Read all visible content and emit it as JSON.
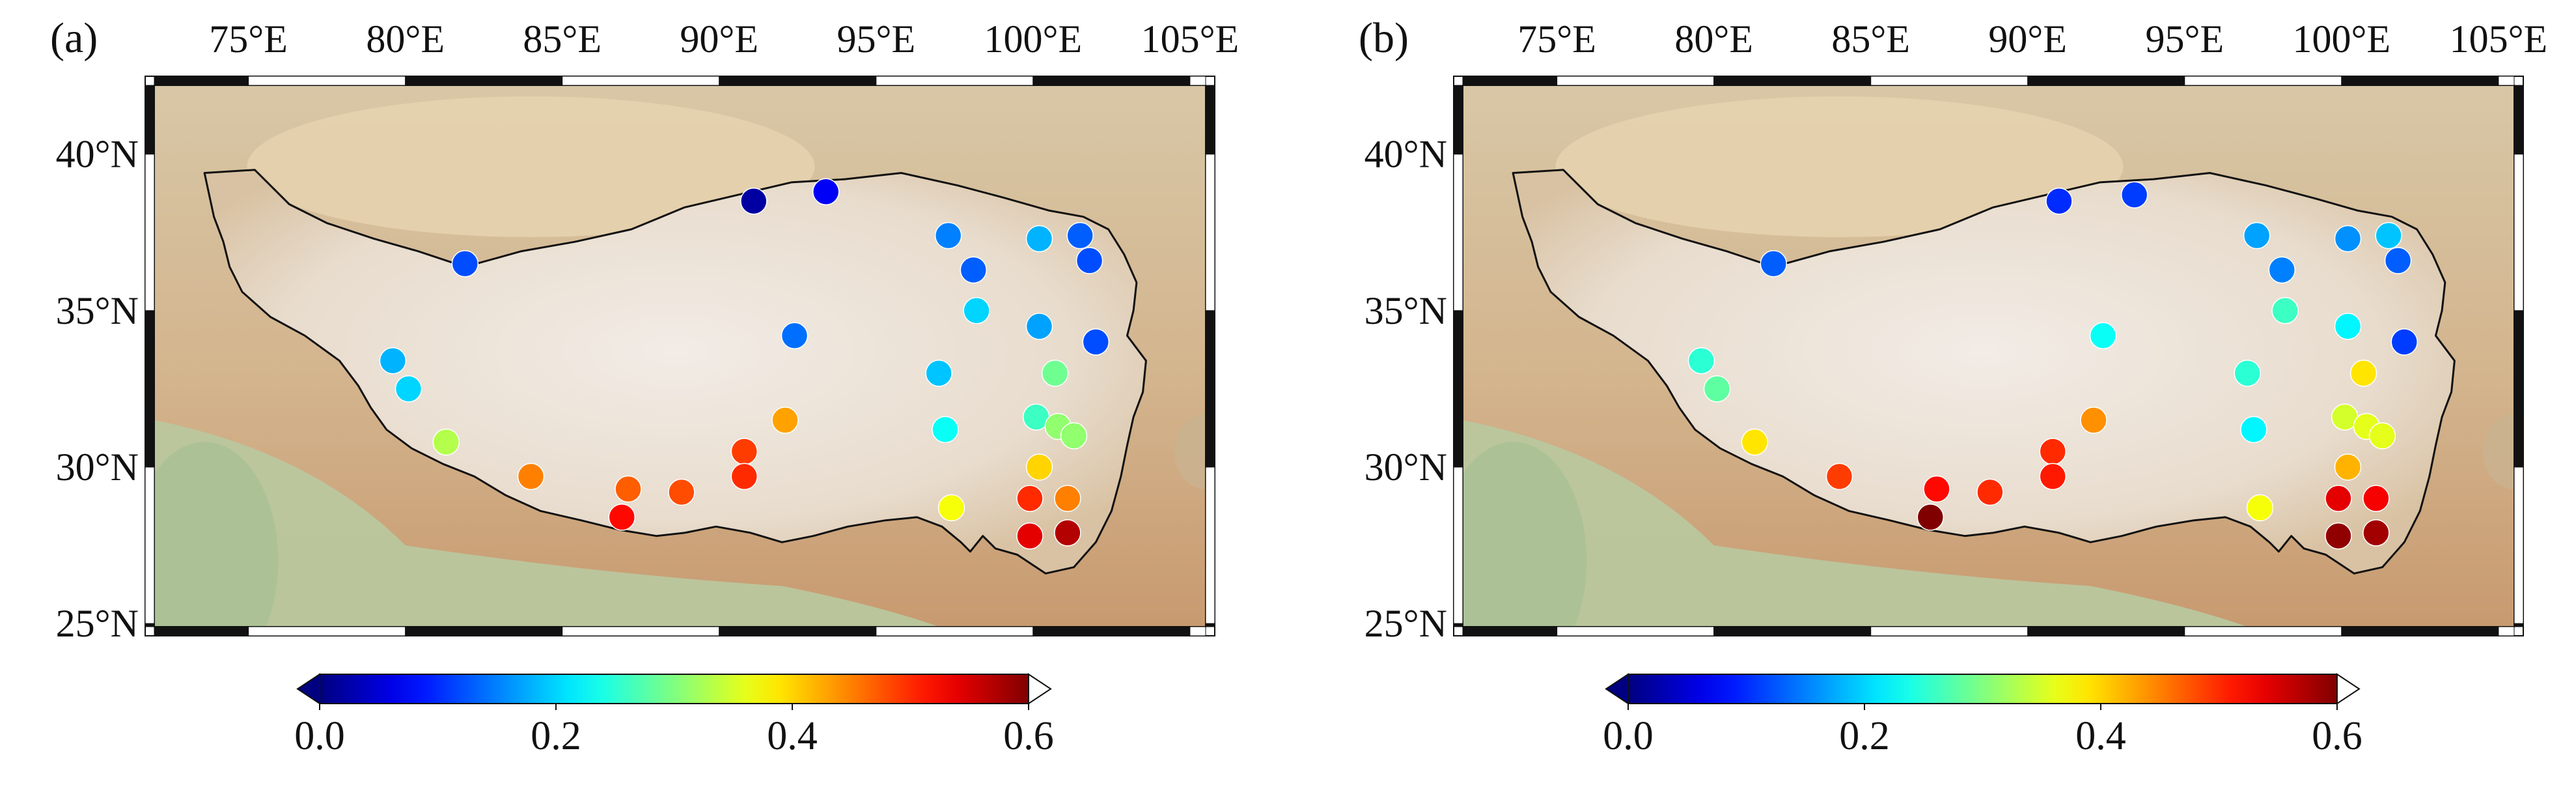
{
  "panels": [
    {
      "label": "(a)",
      "x_ticks": [
        "75°E",
        "80°E",
        "85°E",
        "90°E",
        "95°E",
        "100°E",
        "105°E"
      ],
      "y_ticks": [
        "40°N",
        "35°N",
        "30°N",
        "25°N"
      ],
      "colorbar": {
        "min": 0.0,
        "max": 0.6,
        "ticks": [
          "0.0",
          "0.2",
          "0.4",
          "0.6"
        ],
        "colormap": "jet",
        "extend": "both"
      },
      "stations": [
        {
          "lon": 81.9,
          "lat": 36.5,
          "value": 0.12
        },
        {
          "lon": 91.1,
          "lat": 38.5,
          "value": 0.02
        },
        {
          "lon": 93.4,
          "lat": 38.8,
          "value": 0.07
        },
        {
          "lon": 97.3,
          "lat": 37.4,
          "value": 0.15
        },
        {
          "lon": 100.2,
          "lat": 37.3,
          "value": 0.18
        },
        {
          "lon": 101.5,
          "lat": 37.4,
          "value": 0.13
        },
        {
          "lon": 98.1,
          "lat": 36.3,
          "value": 0.13
        },
        {
          "lon": 101.8,
          "lat": 36.6,
          "value": 0.12
        },
        {
          "lon": 98.2,
          "lat": 35.0,
          "value": 0.2
        },
        {
          "lon": 92.4,
          "lat": 34.2,
          "value": 0.14
        },
        {
          "lon": 100.2,
          "lat": 34.5,
          "value": 0.17
        },
        {
          "lon": 102.0,
          "lat": 34.0,
          "value": 0.12
        },
        {
          "lon": 79.6,
          "lat": 33.4,
          "value": 0.18
        },
        {
          "lon": 80.1,
          "lat": 32.5,
          "value": 0.2
        },
        {
          "lon": 97.0,
          "lat": 33.0,
          "value": 0.19
        },
        {
          "lon": 100.7,
          "lat": 33.0,
          "value": 0.29
        },
        {
          "lon": 92.1,
          "lat": 31.5,
          "value": 0.43
        },
        {
          "lon": 100.1,
          "lat": 31.6,
          "value": 0.26
        },
        {
          "lon": 100.8,
          "lat": 31.3,
          "value": 0.31
        },
        {
          "lon": 101.3,
          "lat": 31.0,
          "value": 0.31
        },
        {
          "lon": 97.2,
          "lat": 31.2,
          "value": 0.23
        },
        {
          "lon": 81.3,
          "lat": 30.8,
          "value": 0.33
        },
        {
          "lon": 90.8,
          "lat": 30.5,
          "value": 0.49
        },
        {
          "lon": 100.2,
          "lat": 30.0,
          "value": 0.4
        },
        {
          "lon": 84.0,
          "lat": 29.7,
          "value": 0.45
        },
        {
          "lon": 90.8,
          "lat": 29.7,
          "value": 0.5
        },
        {
          "lon": 87.1,
          "lat": 29.3,
          "value": 0.47
        },
        {
          "lon": 88.8,
          "lat": 29.2,
          "value": 0.48
        },
        {
          "lon": 99.9,
          "lat": 29.0,
          "value": 0.5
        },
        {
          "lon": 101.1,
          "lat": 29.0,
          "value": 0.45
        },
        {
          "lon": 97.4,
          "lat": 28.7,
          "value": 0.37
        },
        {
          "lon": 86.9,
          "lat": 28.4,
          "value": 0.52
        },
        {
          "lon": 99.9,
          "lat": 27.8,
          "value": 0.54
        },
        {
          "lon": 101.1,
          "lat": 27.9,
          "value": 0.57
        }
      ]
    },
    {
      "label": "(b)",
      "x_ticks": [
        "75°E",
        "80°E",
        "85°E",
        "90°E",
        "95°E",
        "100°E",
        "105°E"
      ],
      "y_ticks": [
        "40°N",
        "35°N",
        "30°N",
        "25°N"
      ],
      "colorbar": {
        "min": 0.0,
        "max": 0.6,
        "ticks": [
          "0.0",
          "0.2",
          "0.4",
          "0.6"
        ],
        "colormap": "jet",
        "extend": "both"
      },
      "stations": [
        {
          "lon": 81.9,
          "lat": 36.5,
          "value": 0.13
        },
        {
          "lon": 91.0,
          "lat": 38.5,
          "value": 0.1
        },
        {
          "lon": 93.4,
          "lat": 38.7,
          "value": 0.11
        },
        {
          "lon": 97.3,
          "lat": 37.4,
          "value": 0.17
        },
        {
          "lon": 100.2,
          "lat": 37.3,
          "value": 0.16
        },
        {
          "lon": 101.5,
          "lat": 37.4,
          "value": 0.19
        },
        {
          "lon": 98.1,
          "lat": 36.3,
          "value": 0.15
        },
        {
          "lon": 101.8,
          "lat": 36.6,
          "value": 0.13
        },
        {
          "lon": 98.2,
          "lat": 35.0,
          "value": 0.26
        },
        {
          "lon": 92.4,
          "lat": 34.2,
          "value": 0.23
        },
        {
          "lon": 100.2,
          "lat": 34.5,
          "value": 0.22
        },
        {
          "lon": 102.0,
          "lat": 34.0,
          "value": 0.11
        },
        {
          "lon": 79.6,
          "lat": 33.4,
          "value": 0.25
        },
        {
          "lon": 80.1,
          "lat": 32.5,
          "value": 0.28
        },
        {
          "lon": 97.0,
          "lat": 33.0,
          "value": 0.25
        },
        {
          "lon": 100.7,
          "lat": 33.0,
          "value": 0.39
        },
        {
          "lon": 92.1,
          "lat": 31.5,
          "value": 0.44
        },
        {
          "lon": 100.1,
          "lat": 31.6,
          "value": 0.35
        },
        {
          "lon": 100.8,
          "lat": 31.3,
          "value": 0.36
        },
        {
          "lon": 101.3,
          "lat": 31.0,
          "value": 0.36
        },
        {
          "lon": 97.2,
          "lat": 31.2,
          "value": 0.22
        },
        {
          "lon": 81.3,
          "lat": 30.8,
          "value": 0.39
        },
        {
          "lon": 90.8,
          "lat": 30.5,
          "value": 0.5
        },
        {
          "lon": 100.2,
          "lat": 30.0,
          "value": 0.42
        },
        {
          "lon": 84.0,
          "lat": 29.7,
          "value": 0.49
        },
        {
          "lon": 90.8,
          "lat": 29.7,
          "value": 0.51
        },
        {
          "lon": 87.1,
          "lat": 29.3,
          "value": 0.52
        },
        {
          "lon": 88.8,
          "lat": 29.2,
          "value": 0.5
        },
        {
          "lon": 99.9,
          "lat": 29.0,
          "value": 0.54
        },
        {
          "lon": 101.1,
          "lat": 29.0,
          "value": 0.53
        },
        {
          "lon": 97.4,
          "lat": 28.7,
          "value": 0.37
        },
        {
          "lon": 86.9,
          "lat": 28.4,
          "value": 0.6
        },
        {
          "lon": 99.9,
          "lat": 27.8,
          "value": 0.59
        },
        {
          "lon": 101.1,
          "lat": 27.9,
          "value": 0.58
        }
      ]
    }
  ]
}
